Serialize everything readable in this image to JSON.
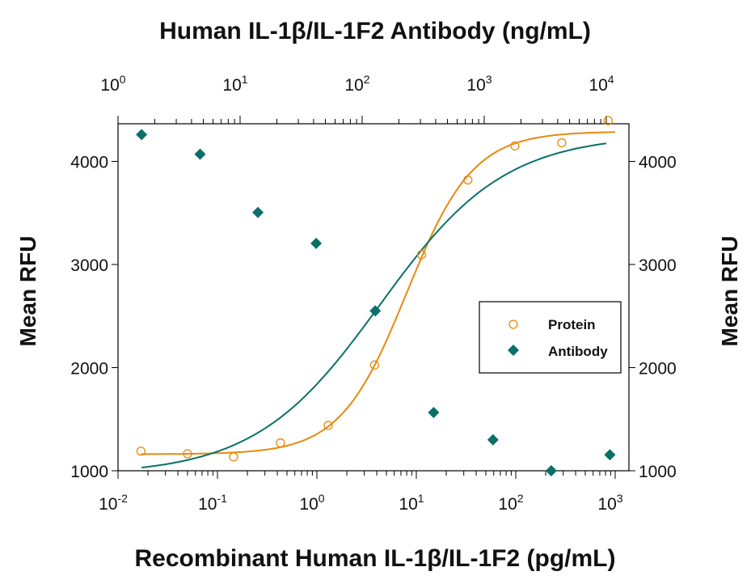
{
  "chart_data": {
    "type": "scatter",
    "title": "Human IL-1β/IL-1F2 Antibody (ng/mL)",
    "xlabel": "Recombinant Human IL-1β/IL-1F2 (pg/mL)",
    "ylabel": "Mean RFU",
    "ylabel_right": "Mean RFU",
    "x_scale": "log",
    "xlim": [
      0.01,
      1000
    ],
    "x2_scale": "log",
    "x2lim": [
      1,
      10000
    ],
    "ylim": [
      1000,
      4450
    ],
    "yticks": [
      1000,
      2000,
      3000,
      4000
    ],
    "xtick_labels": [
      {
        "b": "10",
        "e": "-2"
      },
      {
        "b": "10",
        "e": "-1"
      },
      {
        "b": "10",
        "e": "0"
      },
      {
        "b": "10",
        "e": "1"
      },
      {
        "b": "10",
        "e": "2"
      },
      {
        "b": "10",
        "e": "3"
      }
    ],
    "x2tick_labels": [
      {
        "b": "10",
        "e": "0"
      },
      {
        "b": "10",
        "e": "1"
      },
      {
        "b": "10",
        "e": "2"
      },
      {
        "b": "10",
        "e": "3"
      },
      {
        "b": "10",
        "e": "4"
      }
    ],
    "grid": false,
    "legend_position": "right",
    "series": [
      {
        "name": "Protein",
        "axis": "bottom",
        "marker": "open-circle",
        "color": "#E8890C",
        "x": [
          0.017,
          0.05,
          0.145,
          0.43,
          1.3,
          3.8,
          11.3,
          33,
          98,
          290,
          850
        ],
        "y": [
          1190,
          1165,
          1135,
          1270,
          1440,
          2025,
          3095,
          3820,
          4150,
          4180,
          4395
        ]
      },
      {
        "name": "Antibody",
        "axis": "top",
        "marker": "filled-diamond",
        "color": "#0A7068",
        "x": [
          1.56,
          4.7,
          14,
          42,
          128,
          385,
          1180,
          3540,
          10700
        ],
        "y": [
          4260,
          4070,
          3505,
          3205,
          2550,
          1565,
          1300,
          1000,
          1155
        ]
      }
    ]
  }
}
